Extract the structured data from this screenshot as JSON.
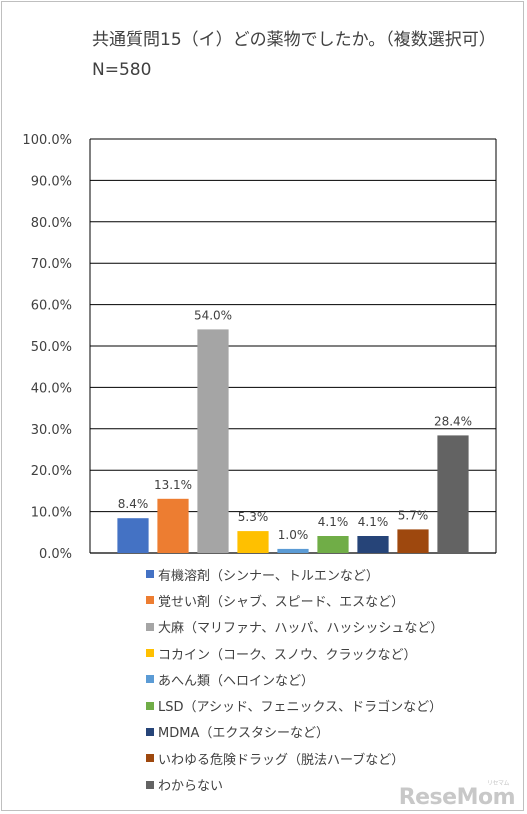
{
  "title": "共通質問15（イ）どの薬物でしたか。（複数選択可）N=580",
  "watermark": "ReseMom",
  "watermark_small": "リセマム",
  "chart_data": {
    "type": "bar",
    "title": "共通質問15（イ）どの薬物でしたか。（複数選択可）N=580",
    "xlabel": "",
    "ylabel": "",
    "ylim": [
      0,
      100
    ],
    "grid": true,
    "legend_position": "bottom",
    "y_ticks": [
      "0.0%",
      "10.0%",
      "20.0%",
      "30.0%",
      "40.0%",
      "50.0%",
      "60.0%",
      "70.0%",
      "80.0%",
      "90.0%",
      "100.0%"
    ],
    "series": [
      {
        "name": "有機溶剤（シンナー、トルエンなど）",
        "value": 8.4,
        "label": "8.4%",
        "color": "#4472c4"
      },
      {
        "name": "覚せい剤（シャブ、スピード、エスなど）",
        "value": 13.1,
        "label": "13.1%",
        "color": "#ed7d31"
      },
      {
        "name": "大麻（マリファナ、ハッパ、ハッシッシュなど）",
        "value": 54.0,
        "label": "54.0%",
        "color": "#a5a5a5"
      },
      {
        "name": "コカイン（コーク、スノウ、クラックなど）",
        "value": 5.3,
        "label": "5.3%",
        "color": "#ffc000"
      },
      {
        "name": "あへん類（ヘロインなど）",
        "value": 1.0,
        "label": "1.0%",
        "color": "#5b9bd5"
      },
      {
        "name": "LSD（アシッド、フェニックス、ドラゴンなど）",
        "value": 4.1,
        "label": "4.1%",
        "color": "#70ad47"
      },
      {
        "name": "MDMA（エクスタシーなど）",
        "value": 4.1,
        "label": "4.1%",
        "color": "#264478"
      },
      {
        "name": "いわゆる危険ドラッグ（脱法ハーブなど）",
        "value": 5.7,
        "label": "5.7%",
        "color": "#9e480e"
      },
      {
        "name": "わからない",
        "value": 28.4,
        "label": "28.4%",
        "color": "#636363"
      }
    ]
  }
}
